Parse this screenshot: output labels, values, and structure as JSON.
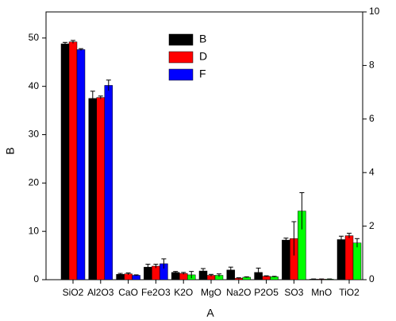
{
  "chart_data": {
    "type": "bar",
    "x_label": "A",
    "y_label": "B",
    "categories": [
      "SiO2",
      "Al2O3",
      "CaO",
      "Fe2O3",
      "K2O",
      "MgO",
      "Na2O",
      "P2O5",
      "SO3",
      "MnO",
      "TiO2"
    ],
    "series": [
      {
        "name": "B",
        "color": "#000000",
        "values": [
          48.8,
          37.5,
          1.1,
          2.6,
          1.5,
          1.8,
          2.0,
          1.5,
          8.2,
          0.1,
          8.3
        ],
        "errors": [
          0.3,
          1.5,
          0.2,
          0.6,
          0.2,
          0.5,
          0.6,
          0.9,
          0.4,
          0.05,
          0.7
        ]
      },
      {
        "name": "D",
        "color": "#ff0000",
        "values": [
          49.2,
          37.7,
          1.2,
          2.8,
          1.3,
          0.9,
          0.3,
          0.7,
          8.5,
          0.1,
          9.1
        ],
        "errors": [
          0.3,
          0.3,
          0.2,
          0.4,
          0.2,
          0.2,
          0.1,
          0.1,
          3.5,
          0.05,
          0.5
        ]
      },
      {
        "name": "F",
        "color": "#0000ff",
        "colors": [
          "#0000ff",
          "#0000ff",
          "#0000ff",
          "#0000ff",
          "#00ff00",
          "#00ff00",
          "#00ff00",
          "#00ff00",
          "#00ff00",
          "#00ff00",
          "#00ff00"
        ],
        "values": [
          47.6,
          40.2,
          0.9,
          3.3,
          1.0,
          0.9,
          0.5,
          0.6,
          14.2,
          0.1,
          7.6
        ],
        "errors": [
          0.2,
          1.1,
          0.1,
          1.0,
          0.7,
          0.3,
          0.1,
          0.1,
          3.8,
          0.05,
          0.9
        ]
      }
    ],
    "ylim": [
      0,
      55.4
    ],
    "yticks": [
      0,
      10,
      20,
      30,
      40,
      50
    ],
    "y2lim": [
      0,
      10
    ],
    "y2ticks": [
      0,
      2,
      4,
      6,
      8,
      10
    ],
    "legend": "top-center"
  }
}
